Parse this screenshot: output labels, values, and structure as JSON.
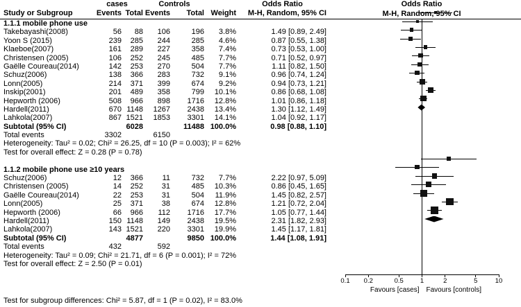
{
  "chart_data": {
    "type": "forest",
    "effect_measure": "Odds Ratio",
    "model": "M-H, Random, 95% CI",
    "header": {
      "group1": "cases",
      "group2": "Controls",
      "study": "Study or Subgroup",
      "events": "Events",
      "total": "Total",
      "weight": "Weight",
      "or_label": "Odds Ratio",
      "or_sub": "M-H, Random, 95% CI"
    },
    "axis": {
      "scale": "log",
      "min": 0.1,
      "max": 10,
      "ticks": [
        0.1,
        0.2,
        0.5,
        1,
        2,
        5,
        10
      ],
      "favours_left": "Favours [cases]",
      "favours_right": "Favours [controls]"
    },
    "subgroups": [
      {
        "title": "1.1.1 mobile phone use",
        "studies": [
          {
            "name": "Takebayashi(2008)",
            "events_cases": 56,
            "total_cases": 88,
            "events_controls": 106,
            "total_controls": 196,
            "weight": "3.8%",
            "or": 1.49,
            "ci_low": 0.89,
            "ci_high": 2.49,
            "ci_text": "1.49 [0.89, 2.49]"
          },
          {
            "name": "Yoon S (2015)",
            "events_cases": 239,
            "total_cases": 285,
            "events_controls": 244,
            "total_controls": 285,
            "weight": "4.6%",
            "or": 0.87,
            "ci_low": 0.55,
            "ci_high": 1.38,
            "ci_text": "0.87 [0.55, 1.38]"
          },
          {
            "name": "Klaeboe(2007)",
            "events_cases": 161,
            "total_cases": 289,
            "events_controls": 227,
            "total_controls": 358,
            "weight": "7.4%",
            "or": 0.73,
            "ci_low": 0.53,
            "ci_high": 1.0,
            "ci_text": "0.73 [0.53, 1.00]"
          },
          {
            "name": "Christensen (2005)",
            "events_cases": 106,
            "total_cases": 252,
            "events_controls": 245,
            "total_controls": 485,
            "weight": "7.7%",
            "or": 0.71,
            "ci_low": 0.52,
            "ci_high": 0.97,
            "ci_text": "0.71 [0.52, 0.97]"
          },
          {
            "name": "Gaëlle Coureau(2014)",
            "events_cases": 142,
            "total_cases": 253,
            "events_controls": 270,
            "total_controls": 504,
            "weight": "7.7%",
            "or": 1.11,
            "ci_low": 0.82,
            "ci_high": 1.5,
            "ci_text": "1.11 [0.82, 1.50]"
          },
          {
            "name": "Schuz(2006)",
            "events_cases": 138,
            "total_cases": 366,
            "events_controls": 283,
            "total_controls": 732,
            "weight": "9.1%",
            "or": 0.96,
            "ci_low": 0.74,
            "ci_high": 1.24,
            "ci_text": "0.96 [0.74, 1.24]"
          },
          {
            "name": "Lonn(2005)",
            "events_cases": 214,
            "total_cases": 371,
            "events_controls": 399,
            "total_controls": 674,
            "weight": "9.2%",
            "or": 0.94,
            "ci_low": 0.73,
            "ci_high": 1.21,
            "ci_text": "0.94 [0.73, 1.21]"
          },
          {
            "name": "Inskip(2001)",
            "events_cases": 201,
            "total_cases": 489,
            "events_controls": 358,
            "total_controls": 799,
            "weight": "10.1%",
            "or": 0.86,
            "ci_low": 0.68,
            "ci_high": 1.08,
            "ci_text": "0.86 [0.68, 1.08]"
          },
          {
            "name": "Hepworth (2006)",
            "events_cases": 508,
            "total_cases": 966,
            "events_controls": 898,
            "total_controls": 1716,
            "weight": "12.8%",
            "or": 1.01,
            "ci_low": 0.86,
            "ci_high": 1.18,
            "ci_text": "1.01 [0.86, 1.18]"
          },
          {
            "name": "Hardell(2011)",
            "events_cases": 670,
            "total_cases": 1148,
            "events_controls": 1267,
            "total_controls": 2438,
            "weight": "13.4%",
            "or": 1.3,
            "ci_low": 1.12,
            "ci_high": 1.49,
            "ci_text": "1.30 [1.12, 1.49]"
          },
          {
            "name": "Lahkola(2007)",
            "events_cases": 867,
            "total_cases": 1521,
            "events_controls": 1853,
            "total_controls": 3301,
            "weight": "14.1%",
            "or": 1.04,
            "ci_low": 0.92,
            "ci_high": 1.17,
            "ci_text": "1.04 [0.92, 1.17]"
          }
        ],
        "subtotal": {
          "label": "Subtotal (95% CI)",
          "total_cases": 6028,
          "total_controls": 11488,
          "weight": "100.0%",
          "or": 0.98,
          "ci_low": 0.88,
          "ci_high": 1.1,
          "ci_text": "0.98 [0.88, 1.10]"
        },
        "total_events": {
          "label": "Total events",
          "cases": 3302,
          "controls": 6150
        },
        "heterogeneity": "Heterogeneity: Tau² = 0.02; Chi² = 26.25, df = 10 (P = 0.003); I² = 62%",
        "overall_effect": "Test for overall effect: Z = 0.28 (P = 0.78)"
      },
      {
        "title": "1.1.2 mobile phone use ≥10 years",
        "studies": [
          {
            "name": "Schuz(2006)",
            "events_cases": 12,
            "total_cases": 366,
            "events_controls": 11,
            "total_controls": 732,
            "weight": "7.7%",
            "or": 2.22,
            "ci_low": 0.97,
            "ci_high": 5.09,
            "ci_text": "2.22 [0.97, 5.09]"
          },
          {
            "name": "Christensen (2005)",
            "events_cases": 14,
            "total_cases": 252,
            "events_controls": 31,
            "total_controls": 485,
            "weight": "10.3%",
            "or": 0.86,
            "ci_low": 0.45,
            "ci_high": 1.65,
            "ci_text": "0.86 [0.45, 1.65]"
          },
          {
            "name": "Gaëlle Coureau(2014)",
            "events_cases": 22,
            "total_cases": 253,
            "events_controls": 31,
            "total_controls": 504,
            "weight": "11.9%",
            "or": 1.45,
            "ci_low": 0.82,
            "ci_high": 2.57,
            "ci_text": "1.45 [0.82, 2.57]"
          },
          {
            "name": "Lonn(2005)",
            "events_cases": 25,
            "total_cases": 371,
            "events_controls": 38,
            "total_controls": 674,
            "weight": "12.8%",
            "or": 1.21,
            "ci_low": 0.72,
            "ci_high": 2.04,
            "ci_text": "1.21 [0.72, 2.04]"
          },
          {
            "name": "Hepworth (2006)",
            "events_cases": 66,
            "total_cases": 966,
            "events_controls": 112,
            "total_controls": 1716,
            "weight": "17.7%",
            "or": 1.05,
            "ci_low": 0.77,
            "ci_high": 1.44,
            "ci_text": "1.05 [0.77, 1.44]"
          },
          {
            "name": "Hardell(2011)",
            "events_cases": 150,
            "total_cases": 1148,
            "events_controls": 149,
            "total_controls": 2438,
            "weight": "19.5%",
            "or": 2.31,
            "ci_low": 1.82,
            "ci_high": 2.93,
            "ci_text": "2.31 [1.82, 2.93]"
          },
          {
            "name": "Lahkola(2007)",
            "events_cases": 143,
            "total_cases": 1521,
            "events_controls": 220,
            "total_controls": 3301,
            "weight": "19.9%",
            "or": 1.45,
            "ci_low": 1.17,
            "ci_high": 1.81,
            "ci_text": "1.45 [1.17, 1.81]"
          }
        ],
        "subtotal": {
          "label": "Subtotal (95% CI)",
          "total_cases": 4877,
          "total_controls": 9850,
          "weight": "100.0%",
          "or": 1.44,
          "ci_low": 1.08,
          "ci_high": 1.91,
          "ci_text": "1.44 [1.08, 1.91]"
        },
        "total_events": {
          "label": "Total events",
          "cases": 432,
          "controls": 592
        },
        "heterogeneity": "Heterogeneity: Tau² = 0.09; Chi² = 21.71, df = 6 (P = 0.001); I² = 72%",
        "overall_effect": "Test for overall effect: Z = 2.50 (P = 0.01)"
      }
    ],
    "footer": "Test for subgroup differences: Chi² = 5.87, df = 1 (P = 0.02), I² = 83.0%"
  }
}
